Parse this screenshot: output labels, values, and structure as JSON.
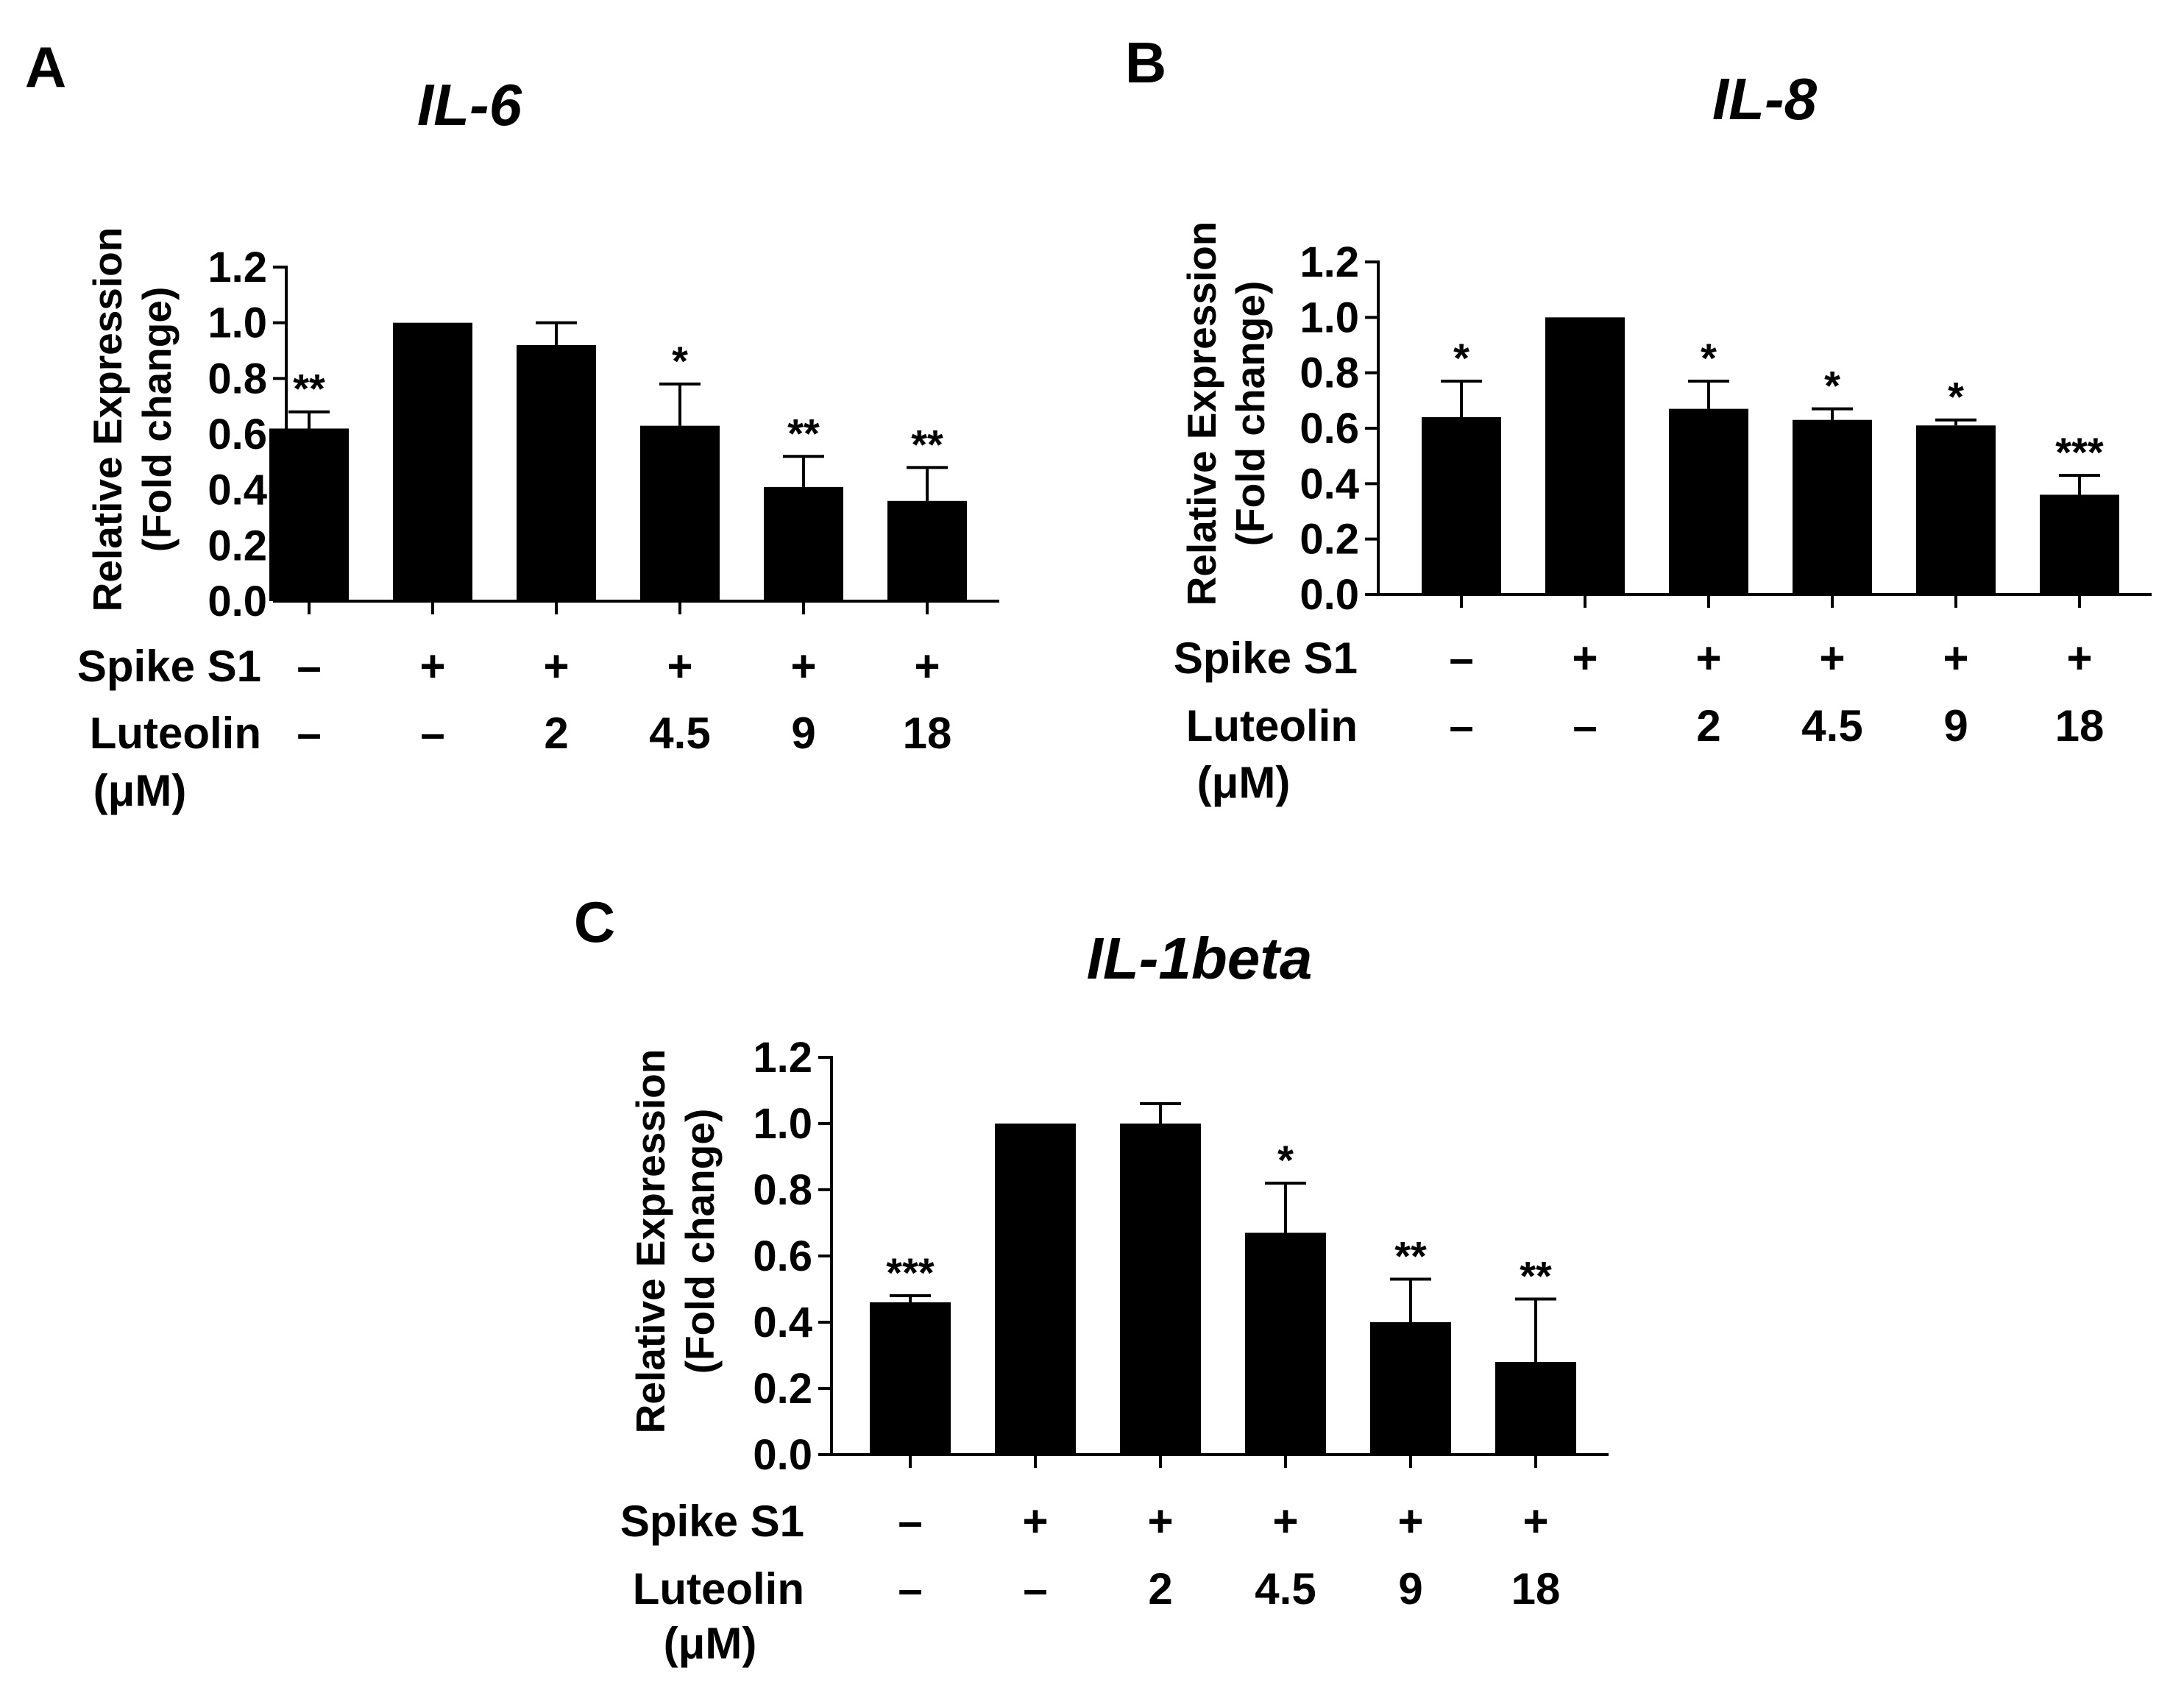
{
  "colors": {
    "bar": "#000000",
    "axis": "#000000",
    "background": "#ffffff"
  },
  "chart_data": [
    {
      "type": "bar",
      "panel_label": "A",
      "title": "IL-6",
      "ylabel_line1": "Relative Expression",
      "ylabel_line2": "(Fold change)",
      "ylim": [
        0,
        1.2
      ],
      "yticks": [
        "0.0",
        "0.2",
        "0.4",
        "0.6",
        "0.8",
        "1.0",
        "1.2"
      ],
      "row1_label": "Spike S1",
      "row2_label_line1": "Luteolin",
      "row2_label_line2": "(μM)",
      "spike": [
        "–",
        "+",
        "+",
        "+",
        "+",
        "+"
      ],
      "luteolin": [
        "–",
        "–",
        "2",
        "4.5",
        "9",
        "18"
      ],
      "values": [
        0.62,
        1.0,
        0.92,
        0.63,
        0.41,
        0.36
      ],
      "errors": [
        0.06,
        0.0,
        0.08,
        0.15,
        0.11,
        0.12
      ],
      "significance": [
        "**",
        "",
        "",
        "*",
        "**",
        "**"
      ]
    },
    {
      "type": "bar",
      "panel_label": "B",
      "title": "IL-8",
      "ylabel_line1": "Relative Expression",
      "ylabel_line2": "(Fold change)",
      "ylim": [
        0,
        1.2
      ],
      "yticks": [
        "0.0",
        "0.2",
        "0.4",
        "0.6",
        "0.8",
        "1.0",
        "1.2"
      ],
      "row1_label": "Spike S1",
      "row2_label_line1": "Luteolin",
      "row2_label_line2": "(μM)",
      "spike": [
        "–",
        "+",
        "+",
        "+",
        "+",
        "+"
      ],
      "luteolin": [
        "–",
        "–",
        "2",
        "4.5",
        "9",
        "18"
      ],
      "values": [
        0.64,
        1.0,
        0.67,
        0.63,
        0.61,
        0.36
      ],
      "errors": [
        0.13,
        0.0,
        0.1,
        0.04,
        0.02,
        0.07
      ],
      "significance": [
        "*",
        "",
        "*",
        "*",
        "*",
        "***"
      ]
    },
    {
      "type": "bar",
      "panel_label": "C",
      "title": "IL-1beta",
      "ylabel_line1": "Relative Expression",
      "ylabel_line2": "(Fold change)",
      "ylim": [
        0,
        1.2
      ],
      "yticks": [
        "0.0",
        "0.2",
        "0.4",
        "0.6",
        "0.8",
        "1.0",
        "1.2"
      ],
      "row1_label": "Spike S1",
      "row2_label_line1": "Luteolin",
      "row2_label_line2": "(μM)",
      "spike": [
        "–",
        "+",
        "+",
        "+",
        "+",
        "+"
      ],
      "luteolin": [
        "–",
        "–",
        "2",
        "4.5",
        "9",
        "18"
      ],
      "values": [
        0.46,
        1.0,
        1.0,
        0.67,
        0.4,
        0.28
      ],
      "errors": [
        0.02,
        0.0,
        0.06,
        0.15,
        0.13,
        0.19
      ],
      "significance": [
        "***",
        "",
        "",
        "*",
        "**",
        "**"
      ]
    }
  ]
}
